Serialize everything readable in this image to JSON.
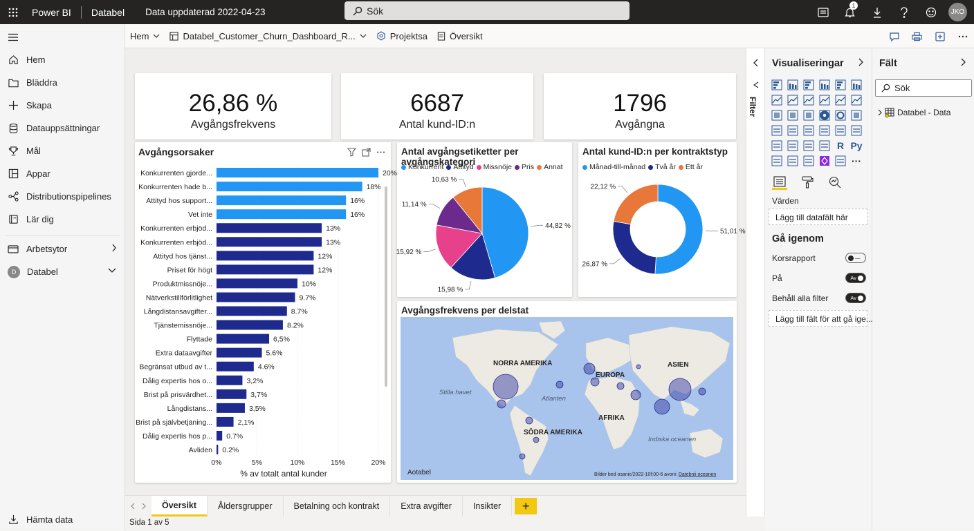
{
  "topbar": {
    "app": "Power BI",
    "workspace": "Databel",
    "updated": "Data uppdaterad 2022-04-23",
    "search_placeholder": "Sök",
    "notification_count": "1",
    "avatar_initials": "JKO"
  },
  "leftnav": {
    "items": [
      {
        "label": "Hem",
        "icon": "home-icon"
      },
      {
        "label": "Bläddra",
        "icon": "folder-icon"
      },
      {
        "label": "Skapa",
        "icon": "plus-icon"
      },
      {
        "label": "Datauppsättningar",
        "icon": "database-icon"
      },
      {
        "label": "Mål",
        "icon": "trophy-icon"
      },
      {
        "label": "Appar",
        "icon": "apps-icon"
      },
      {
        "label": "Distributionspipelines",
        "icon": "pipeline-icon"
      },
      {
        "label": "Lär dig",
        "icon": "book-icon"
      }
    ],
    "workspaces_label": "Arbetsytor",
    "current_workspace": "Databel",
    "current_workspace_initial": "D",
    "get_data": "Hämta data"
  },
  "cmdbar": {
    "home": "Hem",
    "report": "Databel_Customer_Churn_Dashboard_R...",
    "project": "Projektsa",
    "page": "Översikt"
  },
  "kpis": [
    {
      "value": "26,86 %",
      "label": "Avgångsfrekvens"
    },
    {
      "value": "6687",
      "label": "Antal kund-ID:n"
    },
    {
      "value": "1796",
      "label": "Avgångna"
    }
  ],
  "bar_chart": {
    "title": "Avgångsorsaker",
    "xlabel": "% av totalt antal kunder",
    "ticks": [
      "0%",
      "5%",
      "10%",
      "15%",
      "20%"
    ],
    "xmax": 20,
    "colors": {
      "highlight": "#2196f3",
      "normal": "#1f2a8f"
    },
    "rows": [
      {
        "label": "Konkurrenten gjorde...",
        "value": 20,
        "text": "20%",
        "hl": true
      },
      {
        "label": "Konkurrenten hade b...",
        "value": 18,
        "text": "18%",
        "hl": true
      },
      {
        "label": "Attityd hos support...",
        "value": 16,
        "text": "16%",
        "hl": true
      },
      {
        "label": "Vet inte",
        "value": 16,
        "text": "16%",
        "hl": true
      },
      {
        "label": "Konkurrenten erbjöd...",
        "value": 13,
        "text": "13%",
        "hl": false
      },
      {
        "label": "Konkurrenten erbjöd...",
        "value": 13,
        "text": "13%",
        "hl": false
      },
      {
        "label": "Attityd hos tjänst...",
        "value": 12,
        "text": "12%",
        "hl": false
      },
      {
        "label": "Priset för högt",
        "value": 12,
        "text": "12%",
        "hl": false
      },
      {
        "label": "Produktmissnöje...",
        "value": 10,
        "text": "10%",
        "hl": false
      },
      {
        "label": "Nätverkstillförlitlighet",
        "value": 9.7,
        "text": "9.7%",
        "hl": false
      },
      {
        "label": "Långdistansavgifter...",
        "value": 8.7,
        "text": "8.7%",
        "hl": false
      },
      {
        "label": "Tjänstemissnöje...",
        "value": 8.2,
        "text": "8.2%",
        "hl": false
      },
      {
        "label": "Flyttade",
        "value": 6.5,
        "text": "6,5%",
        "hl": false
      },
      {
        "label": "Extra dataavgifter",
        "value": 5.6,
        "text": "5.6%",
        "hl": false
      },
      {
        "label": "Begränsat utbud av t...",
        "value": 4.6,
        "text": "4.6%",
        "hl": false
      },
      {
        "label": "Dålig expertis hos o...",
        "value": 3.2,
        "text": "3,2%",
        "hl": false
      },
      {
        "label": "Brist på prisvärdhet...",
        "value": 3.7,
        "text": "3,7%",
        "hl": false
      },
      {
        "label": "Långdistans...",
        "value": 3.5,
        "text": "3,5%",
        "hl": false
      },
      {
        "label": "Brist på självbetjäning...",
        "value": 2.1,
        "text": "2,1%",
        "hl": false
      },
      {
        "label": "Dålig expertis hos p...",
        "value": 0.7,
        "text": "0.7%",
        "hl": false
      },
      {
        "label": "Avliden",
        "value": 0.2,
        "text": "0.2%",
        "hl": false
      }
    ]
  },
  "pie_chart": {
    "title": "Antal avgångsetiketter per avgångskategori",
    "slices": [
      {
        "name": "Konkurrent",
        "value": 44.82,
        "label": "44,82 %",
        "color": "#2196f3"
      },
      {
        "name": "Attityd",
        "value": 15.98,
        "label": "15,98 %",
        "color": "#1f2a8f"
      },
      {
        "name": "Missnöje",
        "value": 15.92,
        "label": "15,92 %",
        "color": "#e8418c"
      },
      {
        "name": "Pris",
        "value": 11.14,
        "label": "11,14 %",
        "color": "#6b2a8c"
      },
      {
        "name": "Annat",
        "value": 10.63,
        "label": "10,63 %",
        "color": "#e8773a"
      }
    ]
  },
  "donut_chart": {
    "title": "Antal kund-ID:n per kontraktstyp",
    "slices": [
      {
        "name": "Månad-till-månad",
        "value": 51.01,
        "label": "51,01 %",
        "color": "#2196f3"
      },
      {
        "name": "Två år",
        "value": 26.87,
        "label": "26,87 %",
        "color": "#1f2a8f"
      },
      {
        "name": "Ett år",
        "value": 22.12,
        "label": "22,12 %",
        "color": "#e8773a"
      }
    ]
  },
  "map": {
    "title": "Avgångsfrekvens per delstat",
    "continents": [
      "NORRA AMERIKA",
      "EUROPA",
      "ASIEN",
      "AFRIKA",
      "SÖDRA AMERIKA"
    ],
    "oceans": [
      "Stilla havet",
      "Atlanten",
      "Indiska oceanen"
    ],
    "watermark": "Aotabel",
    "credit": "Bilder bed osanic/2022-10f:00-6 avoni:",
    "credit_link": "Datebnii oceanen"
  },
  "tabs": [
    "Översikt",
    "Åldersgrupper",
    "Betalning och kontrakt",
    "Extra avgifter",
    "Insikter"
  ],
  "active_tab": 0,
  "add_tab": "+",
  "status": "Sida 1 av 5",
  "filters_label": "Filter",
  "viz_pane": {
    "title": "Visualiseringar",
    "values_label": "Värden",
    "values_drop": "Lägg till datafält här",
    "drill_title": "Gå igenom",
    "cross_report": "Korsrapport",
    "on_label": "På",
    "keep_filters": "Behåll alla filter",
    "toggle_off": "Av",
    "drill_drop": "Lägg till fält för att gå ige...",
    "extra_icons": [
      "R",
      "Py",
      "···"
    ]
  },
  "fields_pane": {
    "title": "Fält",
    "search_placeholder": "Sök",
    "table": "Databel - Data"
  }
}
